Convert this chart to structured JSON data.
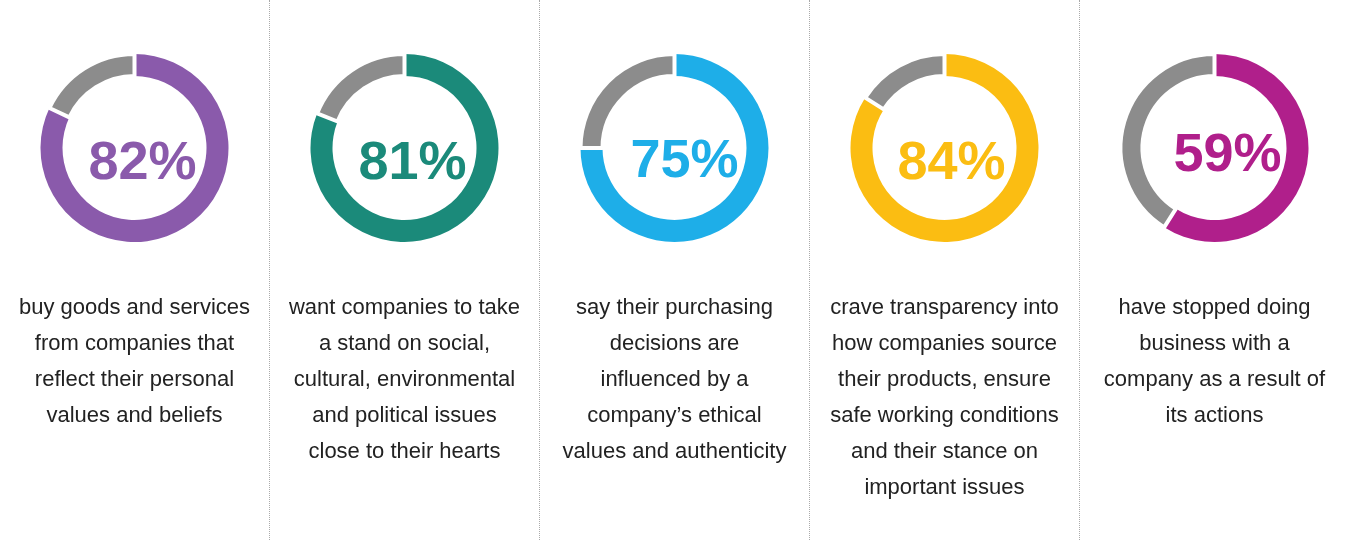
{
  "chart_data": [
    {
      "type": "donut",
      "categories": [
        null,
        null
      ],
      "values": [
        82,
        18
      ],
      "colors": [
        "#8a5aab",
        "#8c8c8c"
      ],
      "value_labels": [
        "82%",
        null
      ],
      "annotations": [
        "buy goods and services from companies that reflect their personal values and beliefs"
      ]
    },
    {
      "type": "donut",
      "categories": [
        null,
        null
      ],
      "values": [
        81,
        19
      ],
      "colors": [
        "#1b8a7a",
        "#8c8c8c"
      ],
      "value_labels": [
        "81%",
        null
      ],
      "annotations": [
        "want companies to take a stand on social, cultural, environmental and political issues close to their hearts"
      ]
    },
    {
      "type": "donut",
      "categories": [
        null,
        null
      ],
      "values": [
        75,
        25
      ],
      "colors": [
        "#1eaee8",
        "#8c8c8c"
      ],
      "value_labels": [
        "75%",
        null
      ],
      "annotations": [
        "say their purchasing decisions are influenced by a company’s ethical values and authenticity"
      ]
    },
    {
      "type": "donut",
      "categories": [
        null,
        null
      ],
      "values": [
        84,
        16
      ],
      "colors": [
        "#fbbd12",
        "#8c8c8c"
      ],
      "value_labels": [
        "84%",
        null
      ],
      "annotations": [
        "crave transparency into how companies source their products, ensure safe working conditions and their stance on important issues"
      ]
    },
    {
      "type": "donut",
      "categories": [
        null,
        null
      ],
      "values": [
        59,
        41
      ],
      "colors": [
        "#b01f8b",
        "#8c8c8c"
      ],
      "value_labels": [
        "59%",
        null
      ],
      "annotations": [
        "have stopped doing business with a company as a result of its actions"
      ]
    }
  ]
}
